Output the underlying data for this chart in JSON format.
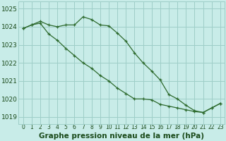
{
  "title": "Graphe pression niveau de la mer (hPa)",
  "x_hours": [
    0,
    1,
    2,
    3,
    4,
    5,
    6,
    7,
    8,
    9,
    10,
    11,
    12,
    13,
    14,
    15,
    16,
    17,
    18,
    19,
    20,
    21,
    22,
    23
  ],
  "line1": [
    1023.9,
    1024.1,
    1024.3,
    1024.1,
    1024.0,
    1024.1,
    1024.1,
    1024.55,
    1024.4,
    1024.1,
    1024.05,
    1023.65,
    1023.2,
    1022.55,
    1022.0,
    1021.55,
    1021.05,
    1020.25,
    1020.0,
    1019.65,
    1019.35,
    1019.25,
    1019.5,
    1019.75
  ],
  "line2": [
    1023.9,
    1024.1,
    1024.2,
    1023.6,
    1023.25,
    1022.8,
    1022.4,
    1022.0,
    1021.7,
    1021.3,
    1021.0,
    1020.6,
    1020.3,
    1020.0,
    1020.0,
    1019.95,
    1019.7,
    1019.6,
    1019.5,
    1019.4,
    1019.3,
    1019.25,
    1019.5,
    1019.75
  ],
  "line_color": "#2d6a2d",
  "bg_color": "#c8ece8",
  "grid_color": "#9ecec8",
  "label_color": "#1a4a1a",
  "ylim_min": 1018.6,
  "ylim_max": 1025.4,
  "yticks": [
    1019,
    1020,
    1021,
    1022,
    1023,
    1024,
    1025
  ],
  "xticks": [
    0,
    1,
    2,
    3,
    4,
    5,
    6,
    7,
    8,
    9,
    10,
    11,
    12,
    13,
    14,
    15,
    16,
    17,
    18,
    19,
    20,
    21,
    22,
    23
  ],
  "xlabel_fontsize": 7.5,
  "ytick_fontsize": 6.5,
  "xtick_fontsize": 5.5
}
